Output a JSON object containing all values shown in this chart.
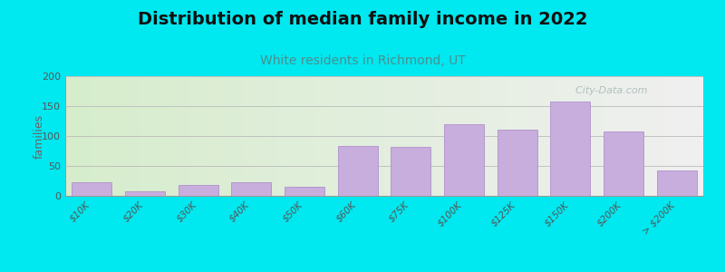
{
  "title": "Distribution of median family income in 2022",
  "subtitle": "White residents in Richmond, UT",
  "categories": [
    "$10K",
    "$20K",
    "$30K",
    "$40K",
    "$50K",
    "$60K",
    "$75K",
    "$100K",
    "$125K",
    "$150K",
    "$200K",
    "> $200K"
  ],
  "values": [
    22,
    7,
    18,
    23,
    15,
    83,
    82,
    120,
    110,
    158,
    107,
    43
  ],
  "bar_color": "#c8aedd",
  "bar_edgecolor": "#b090cc",
  "ylabel": "families",
  "ylim": [
    0,
    200
  ],
  "yticks": [
    0,
    50,
    100,
    150,
    200
  ],
  "background_outer": "#00e8f0",
  "plot_bg_left": "#d6edcc",
  "plot_bg_right": "#f0f0f0",
  "title_fontsize": 14,
  "subtitle_fontsize": 10,
  "subtitle_color": "#4a9090",
  "watermark_text": "  City-Data.com",
  "watermark_color": "#aabbbb",
  "bar_width": 0.75
}
